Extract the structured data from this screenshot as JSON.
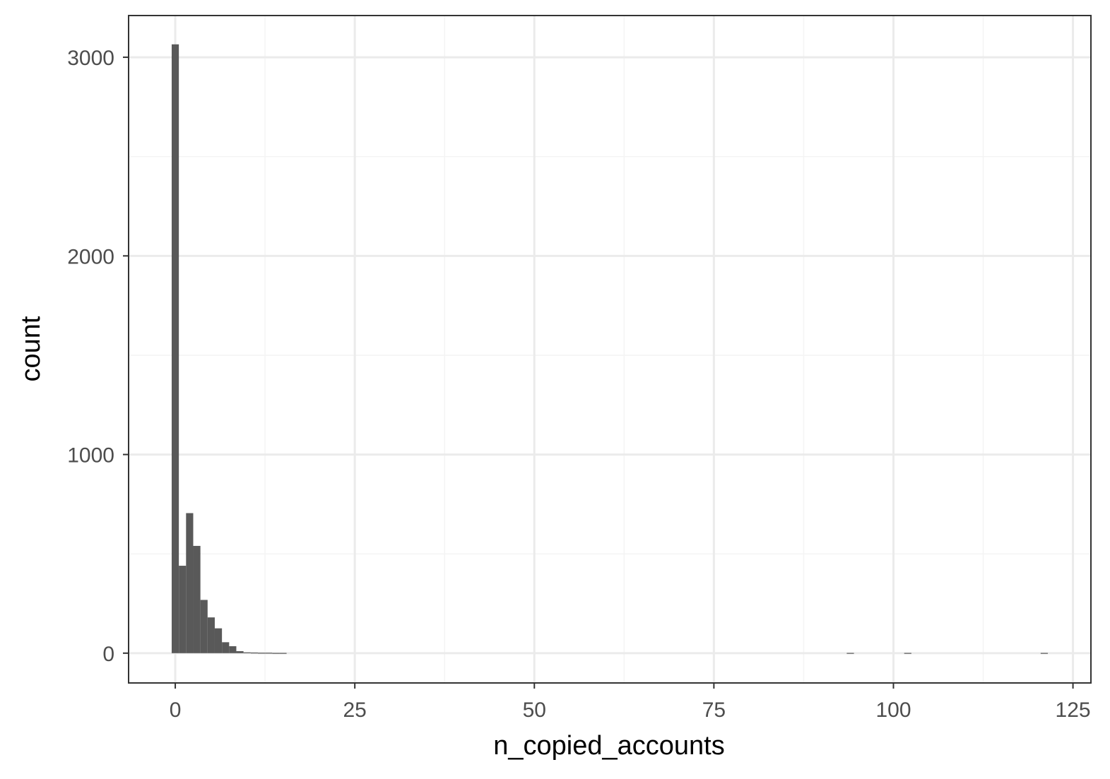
{
  "chart_data": {
    "type": "bar",
    "xlabel": "n_copied_accounts",
    "ylabel": "count",
    "xlim": [
      -6.5,
      127.5
    ],
    "ylim": [
      -150,
      3210
    ],
    "x_ticks": [
      0,
      25,
      50,
      75,
      100,
      125
    ],
    "y_ticks": [
      0,
      1000,
      2000,
      3000
    ],
    "x_tick_labels": [
      "0",
      "25",
      "50",
      "75",
      "100",
      "125"
    ],
    "y_tick_labels": [
      "0",
      "1000",
      "2000",
      "3000"
    ],
    "grid": true,
    "bin_width": 1,
    "bins": [
      {
        "x": 0,
        "count": 3065
      },
      {
        "x": 1,
        "count": 440
      },
      {
        "x": 2,
        "count": 705
      },
      {
        "x": 3,
        "count": 540
      },
      {
        "x": 4,
        "count": 268
      },
      {
        "x": 5,
        "count": 180
      },
      {
        "x": 6,
        "count": 125
      },
      {
        "x": 7,
        "count": 55
      },
      {
        "x": 8,
        "count": 35
      },
      {
        "x": 9,
        "count": 10
      },
      {
        "x": 10,
        "count": 4
      },
      {
        "x": 11,
        "count": 3
      },
      {
        "x": 12,
        "count": 2
      },
      {
        "x": 13,
        "count": 2
      },
      {
        "x": 14,
        "count": 1
      },
      {
        "x": 15,
        "count": 1
      },
      {
        "x": 94,
        "count": 1
      },
      {
        "x": 102,
        "count": 1
      },
      {
        "x": 121,
        "count": 1
      }
    ],
    "colors": {
      "bar": "#595959",
      "panel_border": "#333333",
      "grid_major": "#ebebeb",
      "grid_minor": "#f4f4f4",
      "background": "#ffffff"
    }
  }
}
